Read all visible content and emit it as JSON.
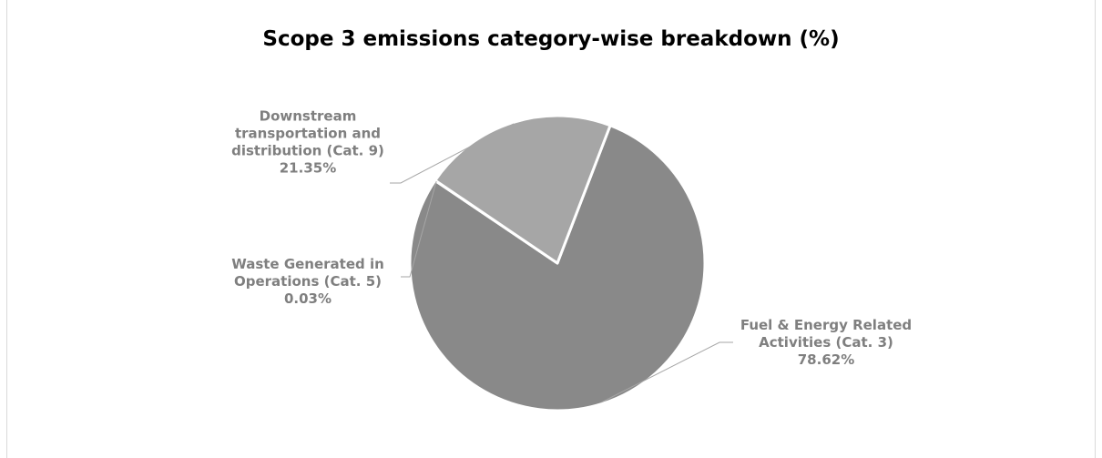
{
  "chart_data": {
    "type": "pie",
    "title": "Scope 3 emissions category-wise breakdown (%)",
    "series": [
      {
        "values": [
          78.62,
          0.03,
          21.35
        ],
        "categories": [
          "Fuel & Energy Related Activities (Cat. 3)",
          "Waste Generated in Operations (Cat. 5)",
          "Downstream transportation and distribution (Cat. 9)"
        ]
      }
    ],
    "slices": [
      {
        "label_lines": [
          "Fuel & Energy Related",
          "Activities (Cat. 3)",
          "78.62%"
        ],
        "value": 78.62,
        "color": "#898989"
      },
      {
        "label_lines": [
          "Waste Generated in",
          "Operations (Cat. 5)",
          "0.03%"
        ],
        "value": 0.03,
        "color": "#bfbfbf"
      },
      {
        "label_lines": [
          "Downstream",
          "transportation and",
          "distribution (Cat. 9)",
          "21.35%"
        ],
        "value": 21.35,
        "color": "#a6a6a6"
      }
    ],
    "label_color": "#7f7f7f",
    "slice_border_color": "#ffffff",
    "leader_line_color": "#a6a6a6",
    "legend": "none"
  }
}
